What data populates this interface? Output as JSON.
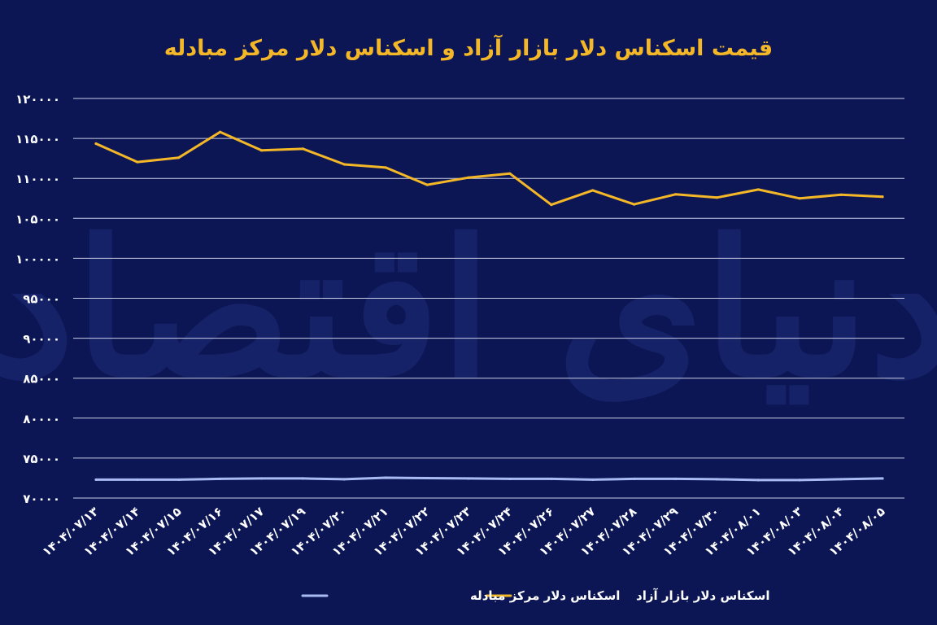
{
  "watermark": "دنیای اقتصاد",
  "chart_data": {
    "type": "line",
    "title": "قیمت اسکناس دلار بازار آزاد و اسکناس دلار مرکز مبادله",
    "xlabel": "",
    "ylabel": "",
    "ylim": [
      70000,
      120000
    ],
    "yticks": [
      70000,
      75000,
      80000,
      85000,
      90000,
      95000,
      100000,
      105000,
      110000,
      115000,
      120000
    ],
    "ytick_labels": [
      "۷۰۰۰۰",
      "۷۵۰۰۰",
      "۸۰۰۰۰",
      "۸۵۰۰۰",
      "۹۰۰۰۰",
      "۹۵۰۰۰",
      "۱۰۰۰۰۰",
      "۱۰۵۰۰۰",
      "۱۱۰۰۰۰",
      "۱۱۵۰۰۰",
      "۱۲۰۰۰۰"
    ],
    "grid": true,
    "legend_position": "bottom-center",
    "categories": [
      "۱۴۰۴/۰۷/۱۳",
      "۱۴۰۴/۰۷/۱۴",
      "۱۴۰۴/۰۷/۱۵",
      "۱۴۰۴/۰۷/۱۶",
      "۱۴۰۴/۰۷/۱۷",
      "۱۴۰۴/۰۷/۱۹",
      "۱۴۰۴/۰۷/۲۰",
      "۱۴۰۴/۰۷/۲۱",
      "۱۴۰۴/۰۷/۲۲",
      "۱۴۰۴/۰۷/۲۳",
      "۱۴۰۴/۰۷/۲۴",
      "۱۴۰۴/۰۷/۲۶",
      "۱۴۰۴/۰۷/۲۷",
      "۱۴۰۴/۰۷/۲۸",
      "۱۴۰۴/۰۷/۲۹",
      "۱۴۰۴/۰۷/۳۰",
      "۱۴۰۴/۰۸/۰۱",
      "۱۴۰۴/۰۸/۰۳",
      "۱۴۰۴/۰۸/۰۴",
      "۱۴۰۴/۰۸/۰۵"
    ],
    "series": [
      {
        "name": "اسکناس دلار بازار آزاد",
        "color": "#f4b728",
        "values": [
          114350,
          112050,
          112600,
          115800,
          113500,
          113700,
          111750,
          111350,
          109200,
          110100,
          110600,
          106700,
          108500,
          106750,
          108000,
          107600,
          108600,
          107500,
          107950,
          107700
        ]
      },
      {
        "name": "اسکناس دلار مرکز مبادله",
        "color": "#a9baf2",
        "values": [
          72300,
          72300,
          72300,
          72400,
          72450,
          72450,
          72350,
          72550,
          72500,
          72450,
          72400,
          72400,
          72300,
          72400,
          72400,
          72350,
          72250,
          72250,
          72350,
          72450
        ]
      }
    ]
  }
}
